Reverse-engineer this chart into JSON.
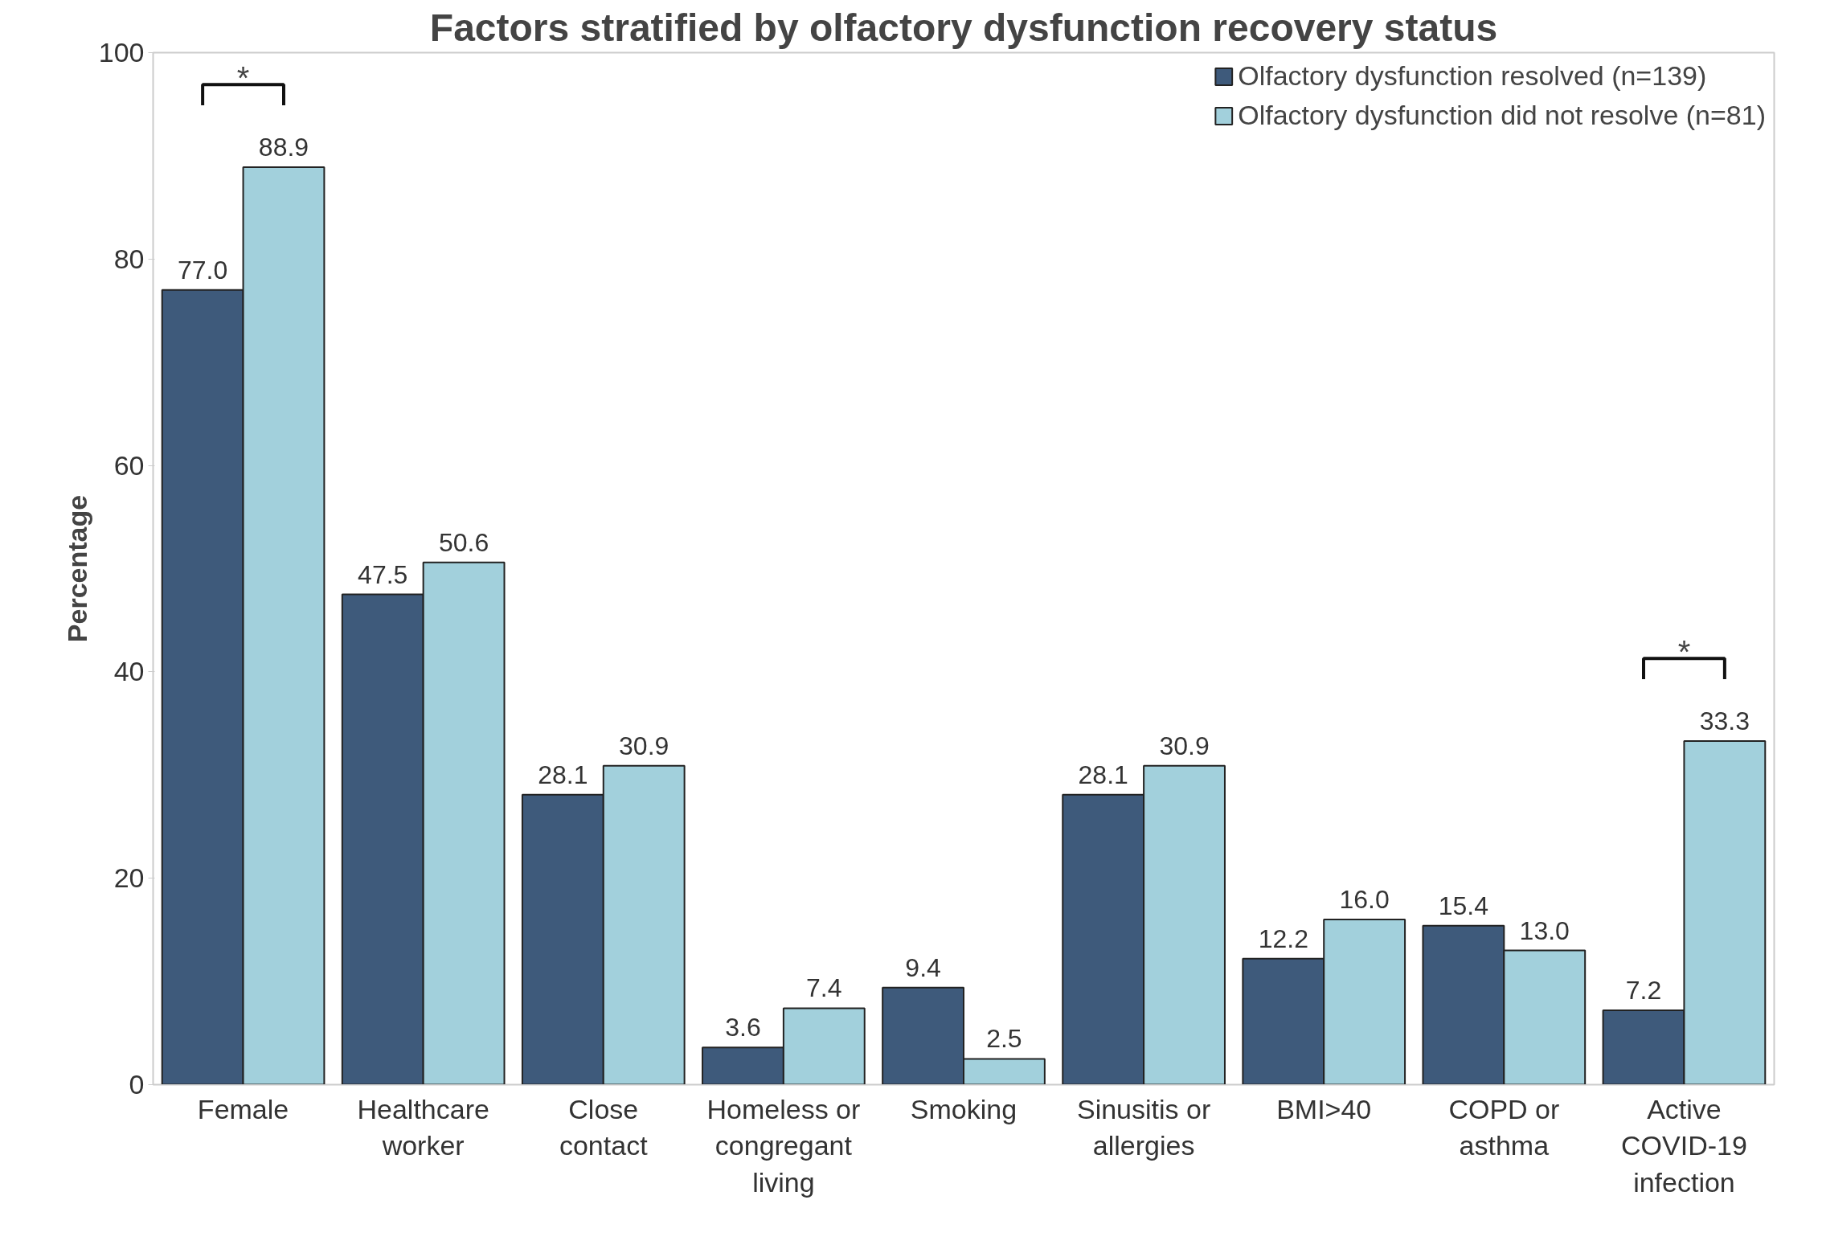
{
  "chart_data": {
    "type": "bar",
    "title": "Factors stratified by olfactory dysfunction recovery status",
    "ylabel": "Percentage",
    "categories": [
      "Female",
      "Healthcare worker",
      "Close contact",
      "Homeless or congregant living",
      "Smoking",
      "Sinusitis or allergies",
      "BMI>40",
      "COPD or asthma",
      "Active COVID-19 infection"
    ],
    "series": [
      {
        "name": "Olfactory dysfunction resolved (n=139)",
        "color": "#3e5a7b",
        "values": [
          77.0,
          47.5,
          28.1,
          3.6,
          9.4,
          28.1,
          12.2,
          15.4,
          7.2
        ],
        "value_labels": [
          "77.0",
          "47.5",
          "28.1",
          "3.6",
          "9.4",
          "28.1",
          "12.2",
          "15.4",
          "7.2"
        ]
      },
      {
        "name": "Olfactory dysfunction did not resolve (n=81)",
        "color": "#a2d0dc",
        "values": [
          88.9,
          50.6,
          30.9,
          7.4,
          2.5,
          30.9,
          16.0,
          13.0,
          33.3
        ],
        "value_labels": [
          "88.9",
          "50.6",
          "30.9",
          "7.4",
          "2.5",
          "30.9",
          "16.0",
          "13.0",
          "33.3"
        ]
      }
    ],
    "ylim": [
      0,
      100
    ],
    "yticks": [
      0,
      20,
      40,
      60,
      80,
      100
    ],
    "grid": false,
    "legend": "top right",
    "annotations": [
      "*",
      "*"
    ]
  }
}
